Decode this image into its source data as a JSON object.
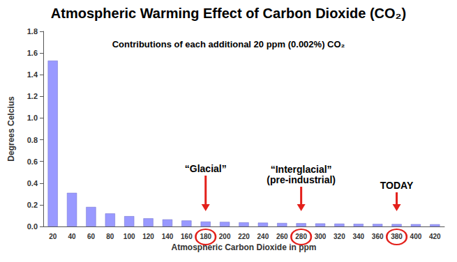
{
  "chart_data": {
    "type": "bar",
    "title": "Atmospheric Warming Effect of Carbon Dioxide (CO₂)",
    "subtitle": "Contributions of each additional 20 ppm (0.002%) CO₂",
    "x_label": "Atmospheric Carbon Dioxide in ppm",
    "y_label": "Degrees Celcius",
    "categories": [
      "20",
      "40",
      "60",
      "80",
      "100",
      "120",
      "140",
      "160",
      "180",
      "200",
      "220",
      "240",
      "260",
      "280",
      "300",
      "320",
      "340",
      "360",
      "380",
      "400",
      "420"
    ],
    "values": [
      1.53,
      0.31,
      0.18,
      0.12,
      0.095,
      0.075,
      0.065,
      0.055,
      0.045,
      0.042,
      0.038,
      0.035,
      0.032,
      0.03,
      0.028,
      0.026,
      0.024,
      0.023,
      0.022,
      0.021,
      0.02
    ],
    "color": "#9999ff",
    "ylim": [
      0,
      1.8
    ],
    "yticks": [
      {
        "value": 0,
        "label": "0.0"
      },
      0.2,
      0.4,
      0.6,
      0.8,
      {
        "value": 1,
        "label": "1.0"
      },
      1.2,
      1.4,
      1.6,
      1.8
    ],
    "grid": false,
    "annotations": [
      {
        "text": "“Glacial”",
        "category": "180"
      },
      {
        "text": "“Interglacial”\n(pre-industrial)",
        "category": "280"
      },
      {
        "text": "TODAY",
        "category": "380"
      }
    ]
  }
}
